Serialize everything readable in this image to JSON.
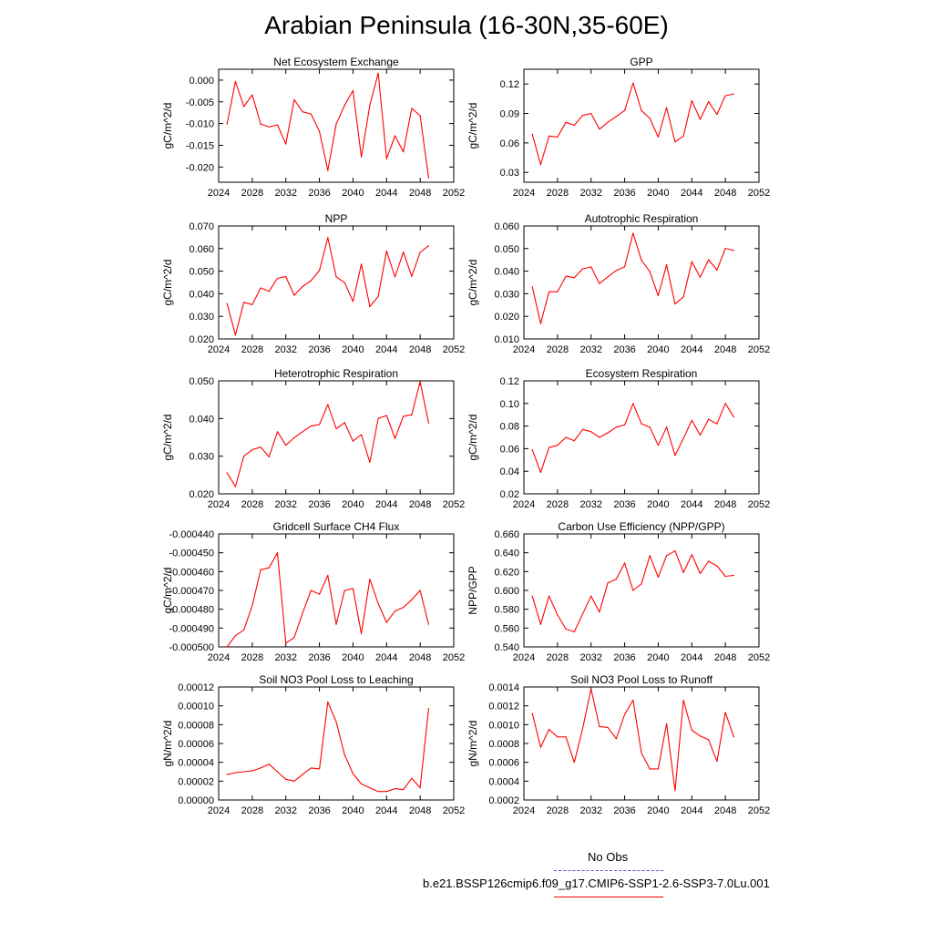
{
  "title": "Arabian Peninsula (16-30N,35-60E)",
  "colors": {
    "series": "#ff0000",
    "obs": "#5555dd",
    "axis": "#000000"
  },
  "legend": {
    "entries": [
      {
        "label": "No Obs",
        "style": "dashed",
        "color": "#5555dd"
      },
      {
        "label": "b.e21.BSSP126cmip6.f09_g17.CMIP6-SSP1-2.6-SSP3-7.0Lu.001",
        "style": "solid",
        "color": "#ff0000"
      }
    ]
  },
  "chart_data": [
    {
      "type": "line",
      "title": "Net Ecosystem Exchange",
      "ylabel": "gC/m^2/d",
      "xlim": [
        2024,
        2052
      ],
      "xticks": [
        2024,
        2028,
        2032,
        2036,
        2040,
        2044,
        2048,
        2052
      ],
      "ylim": [
        -0.0235,
        0.0025
      ],
      "yticks": [
        -0.02,
        -0.015,
        -0.01,
        -0.005,
        0.0
      ],
      "ydec": 3,
      "series": [
        {
          "x": [
            2025,
            2026,
            2027,
            2028,
            2029,
            2030,
            2031,
            2032,
            2033,
            2034,
            2035,
            2036,
            2037,
            2038,
            2039,
            2040,
            2041,
            2042,
            2043,
            2044,
            2045,
            2046,
            2047,
            2048,
            2049
          ],
          "y": [
            -0.0101,
            -0.0003,
            -0.0061,
            -0.0034,
            -0.0101,
            -0.0108,
            -0.0103,
            -0.0147,
            -0.0045,
            -0.0073,
            -0.0078,
            -0.0118,
            -0.0208,
            -0.0101,
            -0.0058,
            -0.0024,
            -0.0177,
            -0.0058,
            0.0016,
            -0.0181,
            -0.0128,
            -0.0165,
            -0.0065,
            -0.0082,
            -0.0225
          ]
        }
      ]
    },
    {
      "type": "line",
      "title": "GPP",
      "ylabel": "gC/m^2/d",
      "xlim": [
        2024,
        2052
      ],
      "xticks": [
        2024,
        2028,
        2032,
        2036,
        2040,
        2044,
        2048,
        2052
      ],
      "ylim": [
        0.02,
        0.135
      ],
      "yticks": [
        0.03,
        0.06,
        0.09,
        0.12
      ],
      "ydec": 2,
      "series": [
        {
          "x": [
            2025,
            2026,
            2027,
            2028,
            2029,
            2030,
            2031,
            2032,
            2033,
            2034,
            2035,
            2036,
            2037,
            2038,
            2039,
            2040,
            2041,
            2042,
            2043,
            2044,
            2045,
            2046,
            2047,
            2048,
            2049
          ],
          "y": [
            0.069,
            0.038,
            0.067,
            0.066,
            0.081,
            0.078,
            0.088,
            0.09,
            0.074,
            0.081,
            0.087,
            0.093,
            0.121,
            0.093,
            0.085,
            0.066,
            0.096,
            0.061,
            0.067,
            0.103,
            0.084,
            0.102,
            0.089,
            0.108,
            0.11
          ]
        }
      ]
    },
    {
      "type": "line",
      "title": "NPP",
      "ylabel": "gC/m^2/d",
      "xlim": [
        2024,
        2052
      ],
      "xticks": [
        2024,
        2028,
        2032,
        2036,
        2040,
        2044,
        2048,
        2052
      ],
      "ylim": [
        0.02,
        0.07
      ],
      "yticks": [
        0.02,
        0.03,
        0.04,
        0.05,
        0.06,
        0.07
      ],
      "ydec": 3,
      "series": [
        {
          "x": [
            2025,
            2026,
            2027,
            2028,
            2029,
            2030,
            2031,
            2032,
            2033,
            2034,
            2035,
            2036,
            2037,
            2038,
            2039,
            2040,
            2041,
            2042,
            2043,
            2044,
            2045,
            2046,
            2047,
            2048,
            2049
          ],
          "y": [
            0.0357,
            0.0217,
            0.0362,
            0.0352,
            0.0426,
            0.0411,
            0.0468,
            0.0476,
            0.0393,
            0.0432,
            0.0458,
            0.0503,
            0.0648,
            0.0475,
            0.0449,
            0.0366,
            0.0531,
            0.0343,
            0.0388,
            0.0589,
            0.0474,
            0.0584,
            0.0477,
            0.0583,
            0.0612
          ]
        }
      ]
    },
    {
      "type": "line",
      "title": "Autotrophic Respiration",
      "ylabel": "gC/m^2/d",
      "xlim": [
        2024,
        2052
      ],
      "xticks": [
        2024,
        2028,
        2032,
        2036,
        2040,
        2044,
        2048,
        2052
      ],
      "ylim": [
        0.01,
        0.06
      ],
      "yticks": [
        0.01,
        0.02,
        0.03,
        0.04,
        0.05,
        0.06
      ],
      "ydec": 3,
      "series": [
        {
          "x": [
            2025,
            2026,
            2027,
            2028,
            2029,
            2030,
            2031,
            2032,
            2033,
            2034,
            2035,
            2036,
            2037,
            2038,
            2039,
            2040,
            2041,
            2042,
            2043,
            2044,
            2045,
            2046,
            2047,
            2048,
            2049
          ],
          "y": [
            0.0331,
            0.0168,
            0.0309,
            0.0309,
            0.0378,
            0.0371,
            0.041,
            0.0419,
            0.0345,
            0.0375,
            0.0403,
            0.0419,
            0.0568,
            0.0448,
            0.0398,
            0.0291,
            0.0428,
            0.0255,
            0.0286,
            0.0442,
            0.0373,
            0.0451,
            0.0405,
            0.0501,
            0.0491
          ]
        }
      ]
    },
    {
      "type": "line",
      "title": "Heterotrophic Respiration",
      "ylabel": "gC/m^2/d",
      "xlim": [
        2024,
        2052
      ],
      "xticks": [
        2024,
        2028,
        2032,
        2036,
        2040,
        2044,
        2048,
        2052
      ],
      "ylim": [
        0.02,
        0.05
      ],
      "yticks": [
        0.02,
        0.03,
        0.04,
        0.05
      ],
      "ydec": 3,
      "series": [
        {
          "x": [
            2025,
            2026,
            2027,
            2028,
            2029,
            2030,
            2031,
            2032,
            2033,
            2034,
            2035,
            2036,
            2037,
            2038,
            2039,
            2040,
            2041,
            2042,
            2043,
            2044,
            2045,
            2046,
            2047,
            2048,
            2049
          ],
          "y": [
            0.0256,
            0.0219,
            0.03,
            0.0317,
            0.0324,
            0.0298,
            0.0365,
            0.0329,
            0.0349,
            0.0365,
            0.038,
            0.0384,
            0.0437,
            0.0373,
            0.0389,
            0.034,
            0.0357,
            0.0284,
            0.04,
            0.0408,
            0.0347,
            0.0406,
            0.041,
            0.0498,
            0.0388
          ]
        }
      ]
    },
    {
      "type": "line",
      "title": "Ecosystem Respiration",
      "ylabel": "gC/m^2/d",
      "xlim": [
        2024,
        2052
      ],
      "xticks": [
        2024,
        2028,
        2032,
        2036,
        2040,
        2044,
        2048,
        2052
      ],
      "ylim": [
        0.02,
        0.12
      ],
      "yticks": [
        0.02,
        0.04,
        0.06,
        0.08,
        0.1,
        0.12
      ],
      "ydec": 2,
      "series": [
        {
          "x": [
            2025,
            2026,
            2027,
            2028,
            2029,
            2030,
            2031,
            2032,
            2033,
            2034,
            2035,
            2036,
            2037,
            2038,
            2039,
            2040,
            2041,
            2042,
            2043,
            2044,
            2045,
            2046,
            2047,
            2048,
            2049
          ],
          "y": [
            0.059,
            0.039,
            0.061,
            0.063,
            0.07,
            0.067,
            0.077,
            0.075,
            0.07,
            0.074,
            0.079,
            0.081,
            0.1,
            0.082,
            0.079,
            0.063,
            0.079,
            0.054,
            0.069,
            0.085,
            0.072,
            0.086,
            0.082,
            0.1,
            0.088
          ]
        }
      ]
    },
    {
      "type": "line",
      "title": "Gridcell Surface CH4 Flux",
      "ylabel": "gC/m^2/d",
      "xlim": [
        2024,
        2052
      ],
      "xticks": [
        2024,
        2028,
        2032,
        2036,
        2040,
        2044,
        2048,
        2052
      ],
      "ylim": [
        -0.0005,
        -0.00044
      ],
      "yticks": [
        -0.0005,
        -0.00049,
        -0.00048,
        -0.00047,
        -0.00046,
        -0.00045,
        -0.00044
      ],
      "ydec": 6,
      "series": [
        {
          "x": [
            2025,
            2026,
            2027,
            2028,
            2029,
            2030,
            2031,
            2032,
            2033,
            2034,
            2035,
            2036,
            2037,
            2038,
            2039,
            2040,
            2041,
            2042,
            2043,
            2044,
            2045,
            2046,
            2047,
            2048,
            2049
          ],
          "y": [
            -0.0005,
            -0.000494,
            -0.000491,
            -0.000478,
            -0.000459,
            -0.000458,
            -0.00045,
            -0.000498,
            -0.000495,
            -0.000482,
            -0.00047,
            -0.000472,
            -0.000462,
            -0.000488,
            -0.00047,
            -0.000469,
            -0.000493,
            -0.000464,
            -0.000477,
            -0.000487,
            -0.000481,
            -0.000479,
            -0.000475,
            -0.00047,
            -0.000488
          ]
        }
      ]
    },
    {
      "type": "line",
      "title": "Carbon Use Efficiency (NPP/GPP)",
      "ylabel": "NPP/GPP",
      "xlim": [
        2024,
        2052
      ],
      "xticks": [
        2024,
        2028,
        2032,
        2036,
        2040,
        2044,
        2048,
        2052
      ],
      "ylim": [
        0.54,
        0.66
      ],
      "yticks": [
        0.54,
        0.56,
        0.58,
        0.6,
        0.62,
        0.64,
        0.66
      ],
      "ydec": 3,
      "series": [
        {
          "x": [
            2025,
            2026,
            2027,
            2028,
            2029,
            2030,
            2031,
            2032,
            2033,
            2034,
            2035,
            2036,
            2037,
            2038,
            2039,
            2040,
            2041,
            2042,
            2043,
            2044,
            2045,
            2046,
            2047,
            2048,
            2049
          ],
          "y": [
            0.594,
            0.564,
            0.594,
            0.574,
            0.559,
            0.556,
            0.575,
            0.594,
            0.577,
            0.608,
            0.612,
            0.629,
            0.6,
            0.607,
            0.637,
            0.614,
            0.637,
            0.642,
            0.619,
            0.638,
            0.618,
            0.631,
            0.626,
            0.615,
            0.616
          ]
        }
      ]
    },
    {
      "type": "line",
      "title": "Soil NO3 Pool Loss to Leaching",
      "ylabel": "gN/m^2/d",
      "xlim": [
        2024,
        2052
      ],
      "xticks": [
        2024,
        2028,
        2032,
        2036,
        2040,
        2044,
        2048,
        2052
      ],
      "ylim": [
        0,
        0.00012
      ],
      "yticks": [
        0,
        2e-05,
        4e-05,
        6e-05,
        8e-05,
        0.0001,
        0.00012
      ],
      "ydec": 5,
      "series": [
        {
          "x": [
            2025,
            2026,
            2027,
            2028,
            2029,
            2030,
            2031,
            2032,
            2033,
            2034,
            2035,
            2036,
            2037,
            2038,
            2039,
            2040,
            2041,
            2042,
            2043,
            2044,
            2045,
            2046,
            2047,
            2048,
            2049
          ],
          "y": [
            2.7e-05,
            2.9e-05,
            3e-05,
            3.1e-05,
            3.4e-05,
            3.8e-05,
            3e-05,
            2.2e-05,
            2e-05,
            2.7e-05,
            3.4e-05,
            3.3e-05,
            0.000104,
            8.3e-05,
            4.8e-05,
            2.8e-05,
            1.7e-05,
            1.3e-05,
            9e-06,
            9e-06,
            1.2e-05,
            1.1e-05,
            2.3e-05,
            1.3e-05,
            9.7e-05
          ]
        }
      ]
    },
    {
      "type": "line",
      "title": "Soil NO3 Pool Loss to Runoff",
      "ylabel": "gN/m^2/d",
      "xlim": [
        2024,
        2052
      ],
      "xticks": [
        2024,
        2028,
        2032,
        2036,
        2040,
        2044,
        2048,
        2052
      ],
      "ylim": [
        0.0002,
        0.0014
      ],
      "yticks": [
        0.0002,
        0.0004,
        0.0006,
        0.0008,
        0.001,
        0.0012,
        0.0014
      ],
      "ydec": 4,
      "series": [
        {
          "x": [
            2025,
            2026,
            2027,
            2028,
            2029,
            2030,
            2031,
            2032,
            2033,
            2034,
            2035,
            2036,
            2037,
            2038,
            2039,
            2040,
            2041,
            2042,
            2043,
            2044,
            2045,
            2046,
            2047,
            2048,
            2049
          ],
          "y": [
            0.00112,
            0.00076,
            0.00095,
            0.00087,
            0.00087,
            0.0006,
            0.00096,
            0.00138,
            0.00098,
            0.00097,
            0.00085,
            0.00111,
            0.00126,
            0.0007,
            0.00053,
            0.00053,
            0.00101,
            0.0003,
            0.00126,
            0.00094,
            0.00088,
            0.00084,
            0.00061,
            0.00113,
            0.00087
          ]
        }
      ]
    }
  ]
}
